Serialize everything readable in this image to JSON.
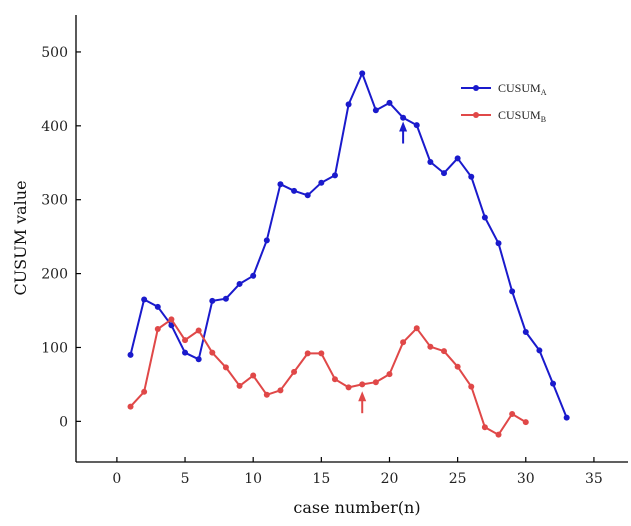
{
  "chart_data": {
    "type": "line",
    "xlabel": "case number(n)",
    "ylabel": "CUSUM value",
    "xlim": [
      -3,
      37.5
    ],
    "ylim": [
      -55,
      550
    ],
    "xticks": [
      0,
      5,
      10,
      15,
      20,
      25,
      30,
      35
    ],
    "yticks": [
      0,
      100,
      200,
      300,
      400,
      500
    ],
    "x_tick_labels": [
      "0",
      "5",
      "10",
      "15",
      "20",
      "25",
      "30",
      "35"
    ],
    "y_tick_labels": [
      "0",
      "100",
      "200",
      "300",
      "400",
      "500"
    ],
    "legend_position": "top-right",
    "series": [
      {
        "name": "CUSUM",
        "subscript": "A",
        "color": "#1a1acc",
        "x": [
          1,
          2,
          3,
          4,
          5,
          6,
          7,
          8,
          9,
          10,
          11,
          12,
          13,
          14,
          15,
          16,
          17,
          18,
          19,
          20,
          21,
          22,
          23,
          24,
          25,
          26,
          27,
          28,
          29,
          30,
          31,
          32,
          33
        ],
        "values": [
          90,
          165,
          155,
          130,
          93,
          84,
          163,
          166,
          186,
          197,
          245,
          321,
          312,
          306,
          323,
          333,
          429,
          471,
          421,
          431,
          411,
          401,
          351,
          336,
          356,
          331,
          276,
          241,
          176,
          121,
          96,
          51,
          5
        ],
        "annotation": {
          "type": "arrow",
          "x": 21,
          "y": 395,
          "direction": "up"
        }
      },
      {
        "name": "CUSUM",
        "subscript": "B",
        "color": "#e04848",
        "x": [
          1,
          2,
          3,
          4,
          5,
          6,
          7,
          8,
          9,
          10,
          11,
          12,
          13,
          14,
          15,
          16,
          17,
          18,
          19,
          20,
          21,
          22,
          23,
          24,
          25,
          26,
          27,
          28,
          29,
          30
        ],
        "values": [
          20,
          40,
          125,
          138,
          110,
          123,
          93,
          73,
          48,
          62,
          36,
          42,
          67,
          92,
          92,
          57,
          46,
          50,
          53,
          64,
          107,
          126,
          101,
          95,
          74,
          47,
          -8,
          -18,
          10,
          -1
        ],
        "annotation": {
          "type": "arrow",
          "x": 18,
          "y": 30,
          "direction": "up"
        }
      }
    ]
  }
}
